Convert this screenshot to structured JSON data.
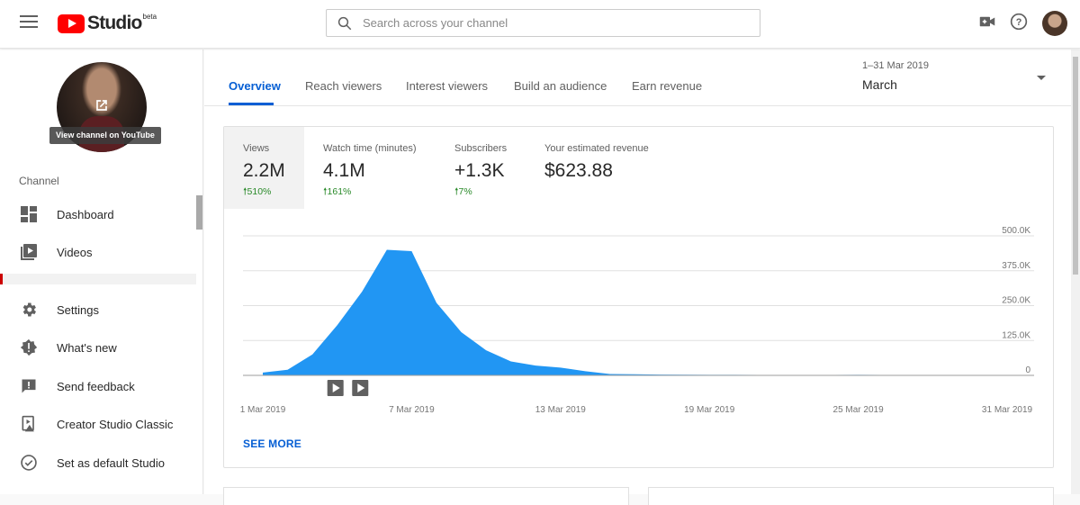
{
  "header": {
    "logo_text": "Studio",
    "logo_badge": "beta",
    "search_placeholder": "Search across your channel",
    "icons": [
      "menu-icon",
      "video-camera-icon",
      "help-icon",
      "account-avatar"
    ]
  },
  "sidebar": {
    "view_channel_label": "View channel on YouTube",
    "section_label": "Channel",
    "items": [
      {
        "label": "Dashboard",
        "icon": "dashboard-icon"
      },
      {
        "label": "Videos",
        "icon": "videos-icon"
      },
      {
        "label": "Settings",
        "icon": "gear-icon"
      },
      {
        "label": "What's new",
        "icon": "whats-new-icon"
      },
      {
        "label": "Send feedback",
        "icon": "feedback-icon"
      },
      {
        "label": "Creator Studio Classic",
        "icon": "creator-classic-icon"
      },
      {
        "label": "Set as default Studio",
        "icon": "check-circle-icon"
      }
    ]
  },
  "tabs": [
    {
      "label": "Overview",
      "active": true
    },
    {
      "label": "Reach viewers",
      "active": false
    },
    {
      "label": "Interest viewers",
      "active": false
    },
    {
      "label": "Build an audience",
      "active": false
    },
    {
      "label": "Earn revenue",
      "active": false
    }
  ],
  "period": {
    "range": "1–31 Mar 2019",
    "value": "March"
  },
  "metrics": [
    {
      "label": "Views",
      "value": "2.2M",
      "change": "510%",
      "selected": true
    },
    {
      "label": "Watch time (minutes)",
      "value": "4.1M",
      "change": "161%",
      "selected": false
    },
    {
      "label": "Subscribers",
      "value": "+1.3K",
      "change": "7%",
      "selected": false
    },
    {
      "label": "Your estimated revenue",
      "value": "$623.88",
      "change": "",
      "selected": false
    }
  ],
  "see_more": "SEE MORE",
  "colors": {
    "accent": "#065fd4",
    "area": "#2196f3",
    "positive": "#2a8a2a",
    "brand": "#ff0000"
  },
  "chart_data": {
    "type": "area",
    "x": [
      "1 Mar 2019",
      "2 Mar 2019",
      "3 Mar 2019",
      "4 Mar 2019",
      "5 Mar 2019",
      "6 Mar 2019",
      "7 Mar 2019",
      "8 Mar 2019",
      "9 Mar 2019",
      "10 Mar 2019",
      "11 Mar 2019",
      "12 Mar 2019",
      "13 Mar 2019",
      "14 Mar 2019",
      "15 Mar 2019",
      "16 Mar 2019",
      "17 Mar 2019",
      "18 Mar 2019",
      "19 Mar 2019",
      "20 Mar 2019",
      "21 Mar 2019",
      "22 Mar 2019",
      "23 Mar 2019",
      "24 Mar 2019",
      "25 Mar 2019",
      "26 Mar 2019",
      "27 Mar 2019",
      "28 Mar 2019",
      "29 Mar 2019",
      "30 Mar 2019",
      "31 Mar 2019"
    ],
    "series": [
      {
        "values": [
          10000,
          20000,
          75000,
          180000,
          300000,
          450000,
          445000,
          260000,
          155000,
          90000,
          50000,
          35000,
          28000,
          15000,
          5000,
          4000,
          3000,
          2500,
          2000,
          2000,
          1500,
          1500,
          1000,
          1500,
          2000,
          1500,
          1000,
          1000,
          1000,
          1000,
          1000
        ]
      }
    ],
    "x_tick_labels": [
      "1 Mar 2019",
      "7 Mar 2019",
      "13 Mar 2019",
      "19 Mar 2019",
      "25 Mar 2019",
      "31 Mar 2019"
    ],
    "y_tick_labels": [
      "500.0K",
      "375.0K",
      "250.0K",
      "125.0K",
      "0"
    ],
    "ylim": [
      0,
      500000
    ],
    "grid": true,
    "annotations": [
      "video-published-marker",
      "video-published-marker"
    ]
  }
}
